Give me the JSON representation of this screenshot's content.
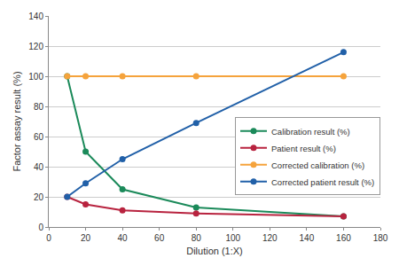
{
  "chart_data": {
    "type": "line",
    "x_label": "Dilution (1:X)",
    "y_label": "Factor assay result (%)",
    "x": [
      10,
      20,
      40,
      80,
      160
    ],
    "series": [
      {
        "name": "Calibration result (%)",
        "color": "#1b8a5a",
        "values": [
          100,
          50,
          25,
          13,
          7
        ]
      },
      {
        "name": "Patient result (%)",
        "color": "#b8233f",
        "values": [
          20,
          15,
          11,
          9,
          7
        ]
      },
      {
        "name": "Corrected calibration (%)",
        "color": "#f5a33c",
        "values": [
          100,
          100,
          100,
          100,
          100
        ]
      },
      {
        "name": "Corrected patient result (%)",
        "color": "#2160a8",
        "values": [
          20,
          29,
          45,
          69,
          116
        ]
      }
    ],
    "xlim": [
      0,
      180
    ],
    "xticks": [
      0,
      20,
      40,
      60,
      80,
      100,
      120,
      140,
      160,
      180
    ],
    "ylim": [
      0,
      140
    ],
    "yticks": [
      0,
      20,
      40,
      60,
      80,
      100,
      120,
      140
    ],
    "grid": true,
    "legend": "lower right",
    "marker": "circle",
    "line_style": "solid"
  }
}
